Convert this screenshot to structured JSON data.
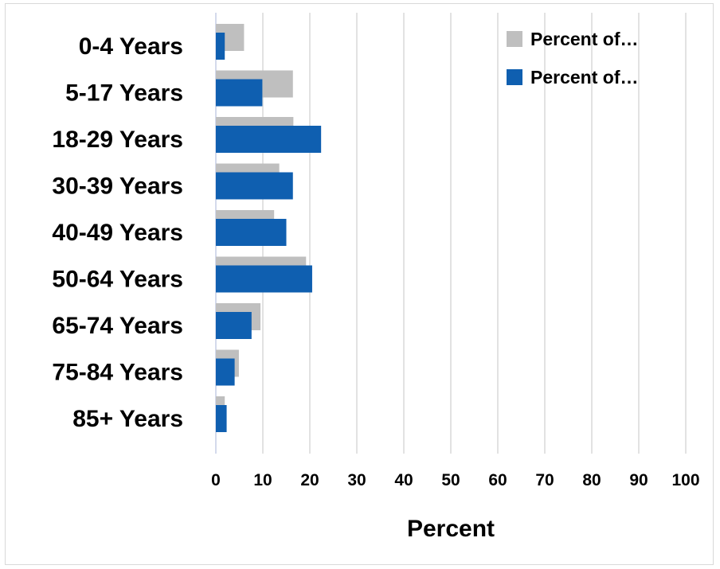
{
  "chart_data": {
    "type": "bar",
    "orientation": "horizontal",
    "categories": [
      "0-4 Years",
      "5-17 Years",
      "18-29 Years",
      "30-39 Years",
      "40-49 Years",
      "50-64 Years",
      "65-74 Years",
      "75-84 Years",
      "85+ Years"
    ],
    "series": [
      {
        "name": "Percent of…",
        "color": "#bfbfbf",
        "values": [
          6,
          16.4,
          16.5,
          13.5,
          12.4,
          19.2,
          9.5,
          4.9,
          1.9
        ]
      },
      {
        "name": "Percent of…",
        "color": "#0f5fb0",
        "values": [
          1.9,
          9.9,
          22.4,
          16.4,
          15,
          20.5,
          7.6,
          4,
          2.3
        ]
      }
    ],
    "xlabel": "Percent",
    "ylabel": "",
    "xlim": [
      0,
      100
    ],
    "xticks": [
      0,
      10,
      20,
      30,
      40,
      50,
      60,
      70,
      80,
      90,
      100
    ],
    "grid": true,
    "legend_position": "top-right"
  }
}
